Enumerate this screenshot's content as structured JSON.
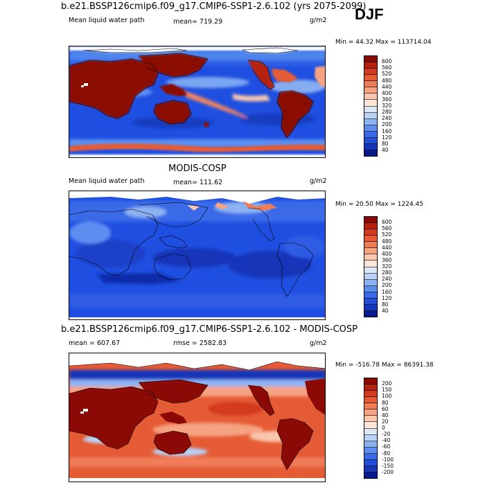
{
  "season": "DJF",
  "panels": [
    {
      "title": "b.e21.BSSP126cmip6.f09_g17.CMIP6-SSP1-2.6.102 (yrs 2075-2099)",
      "left_label": "Mean liquid water path",
      "center_label": "mean= 719.29",
      "units": "g/m2",
      "minmax": "Min =  44.32 Max = 113714.04",
      "colorbar": {
        "labels": [
          "600",
          "560",
          "520",
          "480",
          "440",
          "400",
          "360",
          "320",
          "280",
          "240",
          "200",
          "160",
          "120",
          "80",
          "40"
        ],
        "colors": [
          "#8b0a05",
          "#b5210f",
          "#d23b1e",
          "#e55b35",
          "#f07d58",
          "#f6a382",
          "#fac6ad",
          "#fde6d8",
          "#dce8f8",
          "#b9d2f6",
          "#8cb2f2",
          "#5d8def",
          "#3a6ae8",
          "#234fd8",
          "#1636b8",
          "#071a8c"
        ]
      }
    },
    {
      "title": "MODIS-COSP",
      "left_label": "Mean liquid water path",
      "center_label": "mean= 111.62",
      "units": "g/m2",
      "minmax": "Min =  20.50 Max = 1224.45",
      "colorbar": {
        "labels": [
          "600",
          "560",
          "520",
          "480",
          "440",
          "400",
          "360",
          "320",
          "280",
          "240",
          "200",
          "160",
          "120",
          "80",
          "40"
        ],
        "colors": [
          "#8b0a05",
          "#b5210f",
          "#d23b1e",
          "#e55b35",
          "#f07d58",
          "#f6a382",
          "#fac6ad",
          "#fde6d8",
          "#dce8f8",
          "#b9d2f6",
          "#8cb2f2",
          "#5d8def",
          "#3a6ae8",
          "#234fd8",
          "#1636b8",
          "#071a8c"
        ]
      }
    },
    {
      "title": "b.e21.BSSP126cmip6.f09_g17.CMIP6-SSP1-2.6.102 - MODIS-COSP",
      "left_label": "mean = 607.67",
      "center_label": "rmse = 2582.83",
      "units": "g/m2",
      "minmax": "Min = -516.78 Max = 86391.38",
      "colorbar": {
        "labels": [
          "200",
          "150",
          "100",
          "80",
          "60",
          "40",
          "20",
          "0",
          "-20",
          "-40",
          "-60",
          "-80",
          "-100",
          "-150",
          "-200"
        ],
        "colors": [
          "#8b0a05",
          "#b5210f",
          "#d23b1e",
          "#e55b35",
          "#f07d58",
          "#f6a382",
          "#fac6ad",
          "#fde6d8",
          "#dce8f8",
          "#b9d2f6",
          "#8cb2f2",
          "#5d8def",
          "#3a6ae8",
          "#234fd8",
          "#1636b8",
          "#071a8c"
        ]
      }
    }
  ],
  "chart_data": [
    {
      "type": "heatmap",
      "title": "b.e21.BSSP126cmip6.f09_g17.CMIP6-SSP1-2.6.102 (yrs 2075-2099)",
      "variable": "Mean liquid water path",
      "units": "g/m2",
      "mean": 719.29,
      "min": 44.32,
      "max": 113714.04,
      "contour_levels": [
        40,
        80,
        120,
        160,
        200,
        240,
        280,
        320,
        360,
        400,
        440,
        480,
        520,
        560,
        600
      ]
    },
    {
      "type": "heatmap",
      "title": "MODIS-COSP",
      "variable": "Mean liquid water path",
      "units": "g/m2",
      "mean": 111.62,
      "min": 20.5,
      "max": 1224.45,
      "contour_levels": [
        40,
        80,
        120,
        160,
        200,
        240,
        280,
        320,
        360,
        400,
        440,
        480,
        520,
        560,
        600
      ]
    },
    {
      "type": "heatmap",
      "title": "b.e21.BSSP126cmip6.f09_g17.CMIP6-SSP1-2.6.102 - MODIS-COSP",
      "units": "g/m2",
      "mean": 607.67,
      "rmse": 2582.83,
      "min": -516.78,
      "max": 86391.38,
      "contour_levels": [
        -200,
        -150,
        -100,
        -80,
        -60,
        -40,
        -20,
        0,
        20,
        40,
        60,
        80,
        100,
        150,
        200
      ]
    }
  ]
}
